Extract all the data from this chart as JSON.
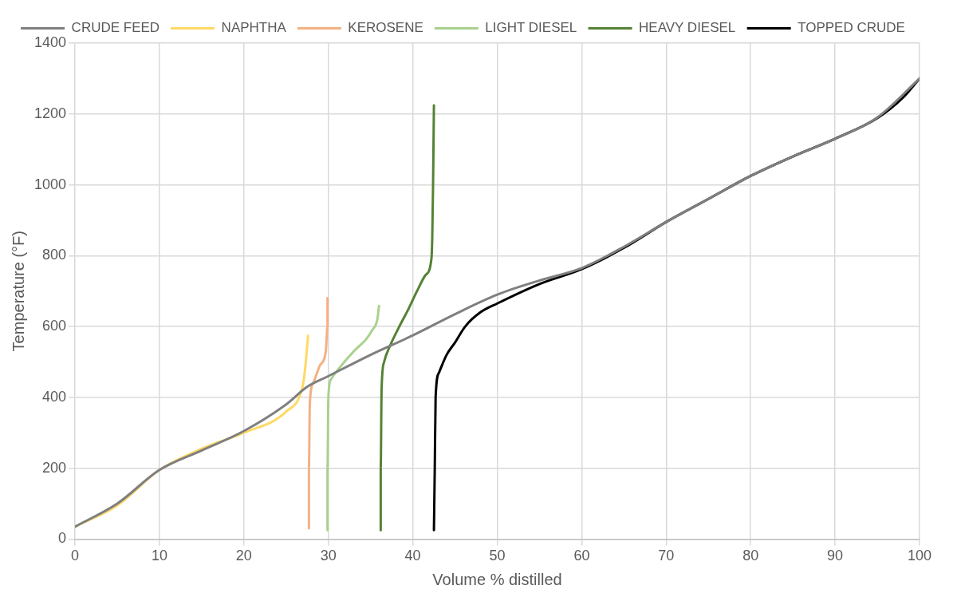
{
  "chart_data": {
    "type": "line",
    "xlabel": "Volume % distilled",
    "ylabel": "Temperature (°F)",
    "xlim": [
      0,
      100
    ],
    "xticks": [
      0,
      10,
      20,
      30,
      40,
      50,
      60,
      70,
      80,
      90,
      100
    ],
    "ylim": [
      0,
      1400
    ],
    "yticks": [
      0,
      200,
      400,
      600,
      800,
      1000,
      1200,
      1400
    ],
    "grid": true,
    "legend": "top",
    "series": [
      {
        "name": "CRUDE FEED",
        "color": "#7f7f7f",
        "x": [
          0,
          5,
          10,
          15,
          20,
          25,
          27.5,
          30,
          35,
          40,
          45,
          50,
          55,
          60,
          65,
          70,
          75,
          80,
          85,
          90,
          95,
          100
        ],
        "values": [
          35,
          100,
          195,
          250,
          305,
          380,
          430,
          460,
          520,
          575,
          635,
          690,
          730,
          765,
          825,
          895,
          960,
          1025,
          1080,
          1130,
          1190,
          1300
        ]
      },
      {
        "name": "NAPHTHA",
        "color": "#ffd966",
        "x": [
          0,
          5,
          10,
          15,
          20,
          25,
          26.9,
          27.2,
          27.6
        ],
        "values": [
          35,
          95,
          195,
          255,
          300,
          360,
          426,
          470,
          574
        ]
      },
      {
        "name": "KEROSENE",
        "color": "#f4b183",
        "x": [
          27.7,
          27.7,
          27.8,
          28.2,
          29.0,
          29.7,
          29.9,
          29.9
        ],
        "values": [
          30,
          200,
          380,
          440,
          490,
          530,
          600,
          680
        ]
      },
      {
        "name": "LIGHT DIESEL",
        "color": "#a9d18e",
        "x": [
          29.9,
          29.9,
          30.0,
          30.3,
          31.2,
          33,
          34.5,
          35.2,
          35.8,
          36.0
        ],
        "values": [
          25,
          200,
          400,
          450,
          480,
          530,
          565,
          590,
          620,
          658
        ]
      },
      {
        "name": "HEAVY DIESEL",
        "color": "#548235",
        "x": [
          36.2,
          36.2,
          36.3,
          36.6,
          37.2,
          38.4,
          39.5,
          40.5,
          41.5,
          42.2,
          42.3,
          42.4,
          42.5
        ],
        "values": [
          25,
          200,
          420,
          500,
          540,
          600,
          650,
          700,
          745,
          790,
          850,
          1000,
          1224
        ]
      },
      {
        "name": "TOPPED CRUDE",
        "color": "#000000",
        "x": [
          42.5,
          42.6,
          42.7,
          43.1,
          44.0,
          45.0,
          46.2,
          48,
          50,
          55,
          60,
          65,
          70,
          75,
          80,
          85,
          90,
          95,
          98,
          100
        ],
        "values": [
          25,
          200,
          400,
          470,
          520,
          555,
          600,
          640,
          665,
          720,
          762,
          822,
          895,
          960,
          1025,
          1080,
          1130,
          1188,
          1245,
          1300
        ]
      }
    ]
  }
}
